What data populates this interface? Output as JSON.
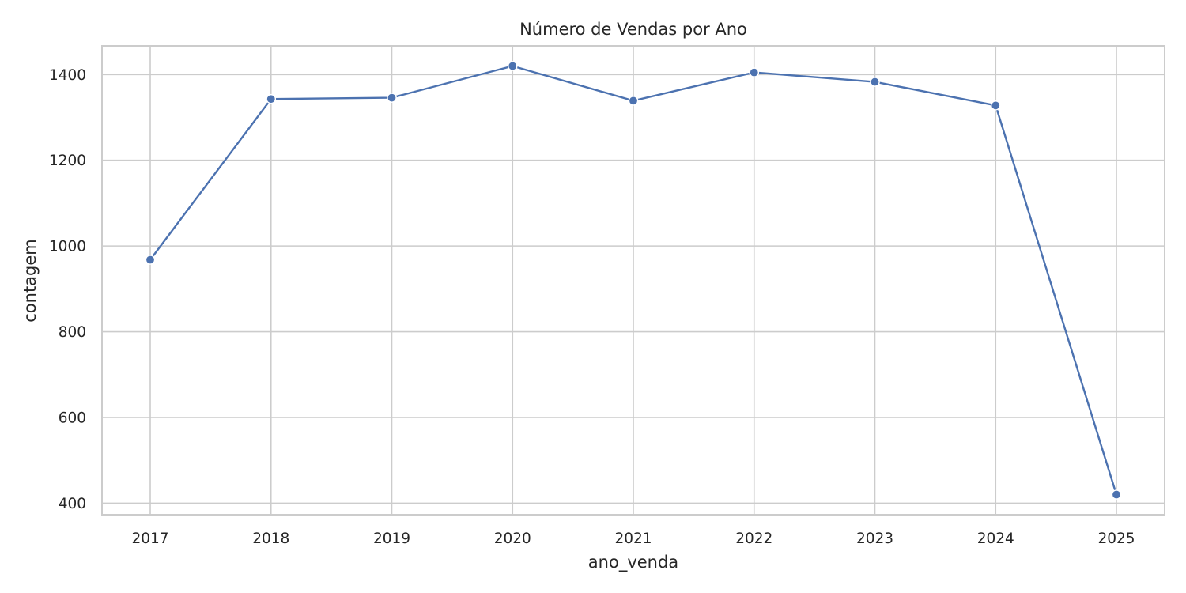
{
  "chart_data": {
    "type": "line",
    "title": "Número de Vendas por Ano",
    "xlabel": "ano_venda",
    "ylabel": "contagem",
    "x": [
      "2017",
      "2018",
      "2019",
      "2020",
      "2021",
      "2022",
      "2023",
      "2024",
      "2025"
    ],
    "series": [
      {
        "values": [
          968,
          1343,
          1346,
          1420,
          1339,
          1405,
          1383,
          1328,
          420
        ],
        "color": "#4c72b0",
        "marker": "circle"
      }
    ],
    "ylim": [
      373,
      1467
    ],
    "yticks": [
      400,
      600,
      800,
      1000,
      1200,
      1400
    ],
    "grid": true,
    "legend": "none"
  }
}
